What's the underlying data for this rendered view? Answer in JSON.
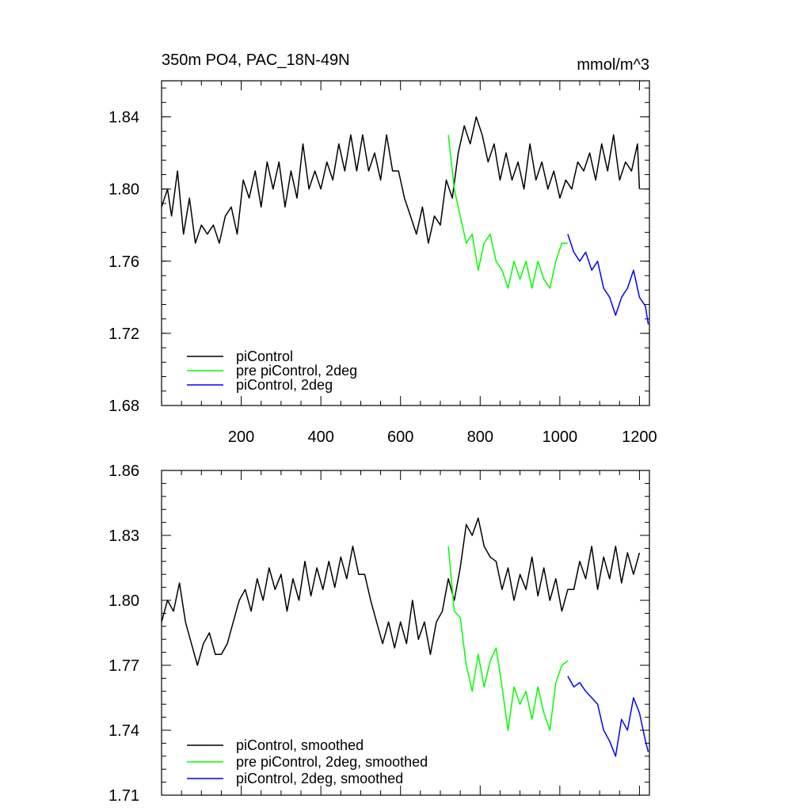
{
  "chart_data": [
    {
      "type": "line",
      "title": "350m PO4, PAC_18N-49N",
      "units": "mmol/m^3",
      "xlabel": "",
      "ylabel": "",
      "xlim": [
        0,
        1225
      ],
      "ylim": [
        1.68,
        1.86
      ],
      "x_ticks": [
        200,
        400,
        600,
        800,
        1000,
        1200
      ],
      "x_tick_labels": [
        "200",
        "400",
        "600",
        "800",
        "1000",
        "1200"
      ],
      "y_ticks": [
        1.68,
        1.72,
        1.76,
        1.8,
        1.84
      ],
      "y_tick_labels": [
        "1.68",
        "1.72",
        "1.76",
        "1.80",
        "1.84"
      ],
      "legend_position": "bottom-left",
      "series": [
        {
          "name": "piControl",
          "color": "#000000",
          "x": [
            0,
            15,
            25,
            40,
            55,
            70,
            85,
            100,
            115,
            130,
            145,
            160,
            175,
            190,
            205,
            220,
            235,
            250,
            265,
            280,
            295,
            310,
            325,
            340,
            355,
            370,
            385,
            400,
            415,
            430,
            445,
            460,
            475,
            490,
            505,
            520,
            535,
            550,
            565,
            580,
            595,
            610,
            625,
            640,
            655,
            670,
            685,
            700,
            715,
            730,
            745,
            760,
            775,
            790,
            805,
            820,
            835,
            850,
            865,
            880,
            895,
            910,
            925,
            940,
            955,
            970,
            985,
            1000,
            1015,
            1030,
            1045,
            1060,
            1075,
            1090,
            1105,
            1120,
            1135,
            1150,
            1165,
            1180,
            1195,
            1200
          ],
          "y": [
            1.79,
            1.8,
            1.785,
            1.81,
            1.775,
            1.795,
            1.77,
            1.78,
            1.775,
            1.78,
            1.77,
            1.785,
            1.79,
            1.775,
            1.805,
            1.795,
            1.81,
            1.79,
            1.815,
            1.8,
            1.815,
            1.79,
            1.81,
            1.795,
            1.825,
            1.8,
            1.81,
            1.8,
            1.815,
            1.805,
            1.825,
            1.81,
            1.83,
            1.81,
            1.83,
            1.81,
            1.82,
            1.805,
            1.83,
            1.81,
            1.81,
            1.795,
            1.785,
            1.775,
            1.79,
            1.77,
            1.785,
            1.78,
            1.805,
            1.795,
            1.82,
            1.835,
            1.825,
            1.84,
            1.83,
            1.815,
            1.825,
            1.805,
            1.82,
            1.805,
            1.815,
            1.8,
            1.825,
            1.805,
            1.815,
            1.8,
            1.81,
            1.795,
            1.805,
            1.8,
            1.815,
            1.81,
            1.82,
            1.805,
            1.825,
            1.81,
            1.83,
            1.805,
            1.815,
            1.81,
            1.825,
            1.8
          ]
        },
        {
          "name": "pre piControl, 2deg",
          "color": "#00ff00",
          "x": [
            720,
            735,
            750,
            765,
            780,
            795,
            810,
            825,
            840,
            855,
            870,
            885,
            900,
            915,
            930,
            945,
            960,
            975,
            990,
            1005,
            1020
          ],
          "y": [
            1.83,
            1.8,
            1.785,
            1.77,
            1.775,
            1.755,
            1.77,
            1.775,
            1.76,
            1.755,
            1.745,
            1.76,
            1.75,
            1.76,
            1.745,
            1.76,
            1.75,
            1.745,
            1.76,
            1.77,
            1.77
          ]
        },
        {
          "name": "piControl, 2deg",
          "color": "#0000ff",
          "x": [
            1020,
            1035,
            1050,
            1065,
            1080,
            1095,
            1110,
            1125,
            1140,
            1155,
            1170,
            1185,
            1200,
            1215,
            1222
          ],
          "y": [
            1.775,
            1.765,
            1.76,
            1.765,
            1.755,
            1.76,
            1.745,
            1.74,
            1.73,
            1.74,
            1.745,
            1.755,
            1.74,
            1.735,
            1.725
          ]
        }
      ]
    },
    {
      "type": "line",
      "title": "",
      "xlabel": "",
      "ylabel": "",
      "xlim": [
        0,
        1225
      ],
      "ylim": [
        1.71,
        1.86
      ],
      "x_ticks": [
        200,
        400,
        600,
        800,
        1000,
        1200
      ],
      "y_ticks": [
        1.71,
        1.74,
        1.77,
        1.8,
        1.83,
        1.86
      ],
      "y_tick_labels": [
        "1.71",
        "1.74",
        "1.77",
        "1.80",
        "1.83",
        "1.86"
      ],
      "legend_position": "bottom-left",
      "series": [
        {
          "name": "piControl, smoothed",
          "color": "#000000",
          "x": [
            0,
            15,
            30,
            45,
            60,
            75,
            90,
            105,
            120,
            135,
            150,
            165,
            180,
            195,
            210,
            225,
            240,
            255,
            270,
            285,
            300,
            315,
            330,
            345,
            360,
            375,
            390,
            405,
            420,
            435,
            450,
            465,
            480,
            495,
            510,
            525,
            540,
            555,
            570,
            585,
            600,
            615,
            630,
            645,
            660,
            675,
            690,
            705,
            720,
            735,
            750,
            765,
            780,
            795,
            810,
            825,
            840,
            855,
            870,
            885,
            900,
            915,
            930,
            945,
            960,
            975,
            990,
            1005,
            1020,
            1035,
            1050,
            1065,
            1080,
            1095,
            1110,
            1125,
            1140,
            1155,
            1170,
            1185,
            1200
          ],
          "y": [
            1.79,
            1.8,
            1.795,
            1.808,
            1.79,
            1.78,
            1.77,
            1.78,
            1.785,
            1.775,
            1.775,
            1.78,
            1.79,
            1.8,
            1.805,
            1.795,
            1.81,
            1.8,
            1.815,
            1.805,
            1.812,
            1.795,
            1.81,
            1.8,
            1.818,
            1.802,
            1.815,
            1.805,
            1.818,
            1.806,
            1.82,
            1.81,
            1.825,
            1.812,
            1.812,
            1.8,
            1.79,
            1.78,
            1.79,
            1.778,
            1.79,
            1.78,
            1.8,
            1.782,
            1.79,
            1.775,
            1.79,
            1.795,
            1.81,
            1.8,
            1.815,
            1.835,
            1.83,
            1.838,
            1.825,
            1.82,
            1.818,
            1.805,
            1.815,
            1.8,
            1.812,
            1.805,
            1.82,
            1.802,
            1.815,
            1.8,
            1.81,
            1.795,
            1.805,
            1.805,
            1.818,
            1.81,
            1.825,
            1.805,
            1.82,
            1.81,
            1.825,
            1.808,
            1.822,
            1.812,
            1.822
          ]
        },
        {
          "name": "pre piControl, 2deg, smoothed",
          "color": "#00ff00",
          "x": [
            720,
            735,
            750,
            765,
            780,
            795,
            810,
            825,
            840,
            855,
            870,
            885,
            900,
            915,
            930,
            945,
            960,
            975,
            990,
            1005,
            1020
          ],
          "y": [
            1.825,
            1.795,
            1.792,
            1.77,
            1.758,
            1.775,
            1.76,
            1.772,
            1.778,
            1.76,
            1.74,
            1.76,
            1.752,
            1.758,
            1.745,
            1.76,
            1.748,
            1.74,
            1.762,
            1.77,
            1.772
          ]
        },
        {
          "name": "piControl, 2deg, smoothed",
          "color": "#0000ff",
          "x": [
            1020,
            1035,
            1050,
            1065,
            1080,
            1095,
            1110,
            1125,
            1140,
            1155,
            1170,
            1185,
            1200,
            1215,
            1222
          ],
          "y": [
            1.765,
            1.76,
            1.762,
            1.758,
            1.755,
            1.752,
            1.74,
            1.735,
            1.728,
            1.745,
            1.74,
            1.755,
            1.748,
            1.735,
            1.73
          ]
        }
      ]
    }
  ]
}
